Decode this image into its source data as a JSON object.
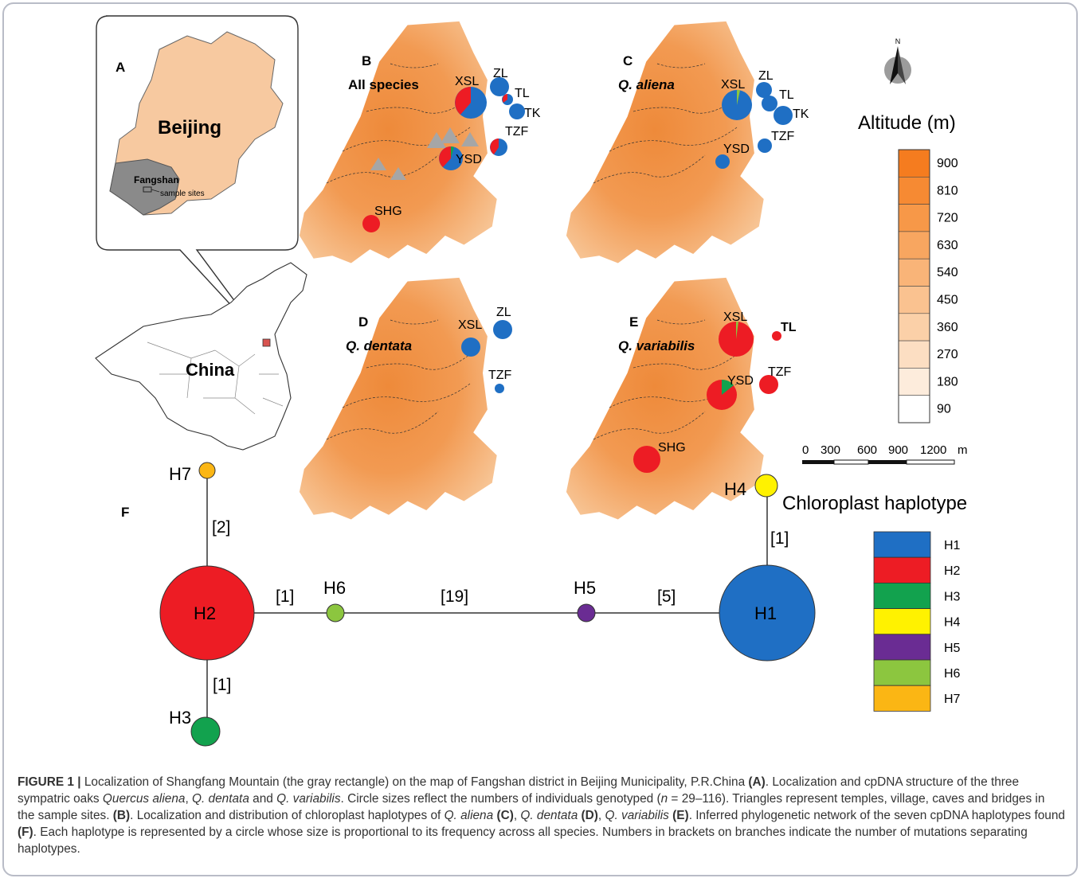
{
  "panels": {
    "A": {
      "letter": "A",
      "region": "Beijing",
      "district": "Fangshan",
      "sites_note": "sample sites",
      "country": "China"
    },
    "B": {
      "letter": "B",
      "title": "All species"
    },
    "C": {
      "letter": "C",
      "title": "Q. aliena"
    },
    "D": {
      "letter": "D",
      "title": "Q. dentata"
    },
    "E": {
      "letter": "E",
      "title": "Q. variabilis"
    },
    "F": {
      "letter": "F"
    }
  },
  "site_labels": {
    "B": [
      "XSL",
      "ZL",
      "TL",
      "TK",
      "TZF",
      "YSD",
      "SHG"
    ],
    "C": [
      "XSL",
      "ZL",
      "TL",
      "TK",
      "TZF",
      "YSD"
    ],
    "D": [
      "XSL",
      "ZL",
      "TZF"
    ],
    "E": [
      "XSL",
      "TL",
      "YSD",
      "TZF",
      "SHG"
    ]
  },
  "altitude_legend": {
    "title": "Altitude (m)",
    "levels": [
      "900",
      "810",
      "720",
      "630",
      "540",
      "450",
      "360",
      "270",
      "180",
      "90"
    ],
    "colors": [
      "#f57c1f",
      "#f68a33",
      "#f79848",
      "#f8a660",
      "#f9b478",
      "#fac290",
      "#fbd0a8",
      "#fcdec2",
      "#fdecdc",
      "#ffffff"
    ]
  },
  "scale_bar": {
    "ticks": [
      "0",
      "300",
      "600",
      "900",
      "1200"
    ],
    "unit": "m"
  },
  "compass": {
    "label": "N"
  },
  "haplotype_legend": {
    "title": "Chloroplast haplotype",
    "items": [
      {
        "name": "H1",
        "color": "#1f6fc4"
      },
      {
        "name": "H2",
        "color": "#ed1c24"
      },
      {
        "name": "H3",
        "color": "#12a24e"
      },
      {
        "name": "H4",
        "color": "#fff200"
      },
      {
        "name": "H5",
        "color": "#6a2c93"
      },
      {
        "name": "H6",
        "color": "#8cc63f"
      },
      {
        "name": "H7",
        "color": "#fbb614"
      }
    ]
  },
  "network": {
    "nodes": [
      "H7",
      "H2",
      "H3",
      "H6",
      "H5",
      "H1",
      "H4"
    ],
    "branches": [
      "[2]",
      "[1]",
      "[1]",
      "[19]",
      "[5]",
      "[1]"
    ]
  },
  "caption": {
    "label": "FIGURE 1 |",
    "p1": " Localization of Shangfang Mountain (the gray rectangle) on the map of Fangshan district in Beijing Municipality, P.R.China ",
    "refA": "(A)",
    "p2": ". Localization and cpDNA structure of the three sympatric oaks ",
    "sp1": "Quercus aliena",
    "sep1": ", ",
    "sp2": "Q. dentata",
    "and1": " and ",
    "sp3": "Q. variabilis",
    "p3": ". Circle sizes reflect the numbers of individuals genotyped (",
    "n": "n",
    "p4": " = 29–116). Triangles represent temples, village, caves and bridges in the sample sites. ",
    "refB": "(B)",
    "p5": ". Localization and distribution of chloroplast haplotypes of ",
    "sp4": "Q. aliena",
    "refC": " (C)",
    "sep2": ", ",
    "sp5": "Q. dentata",
    "refD": " (D)",
    "sep3": ", ",
    "sp6": "Q. variabilis",
    "refE": " (E)",
    "p6": ". Inferred phylogenetic network of the seven cpDNA haplotypes found ",
    "refF": "(F)",
    "p7": ". Each haplotype is represented by a circle whose size is proportional to its frequency across all species. Numbers in brackets on branches indicate the number of mutations separating haplotypes."
  }
}
